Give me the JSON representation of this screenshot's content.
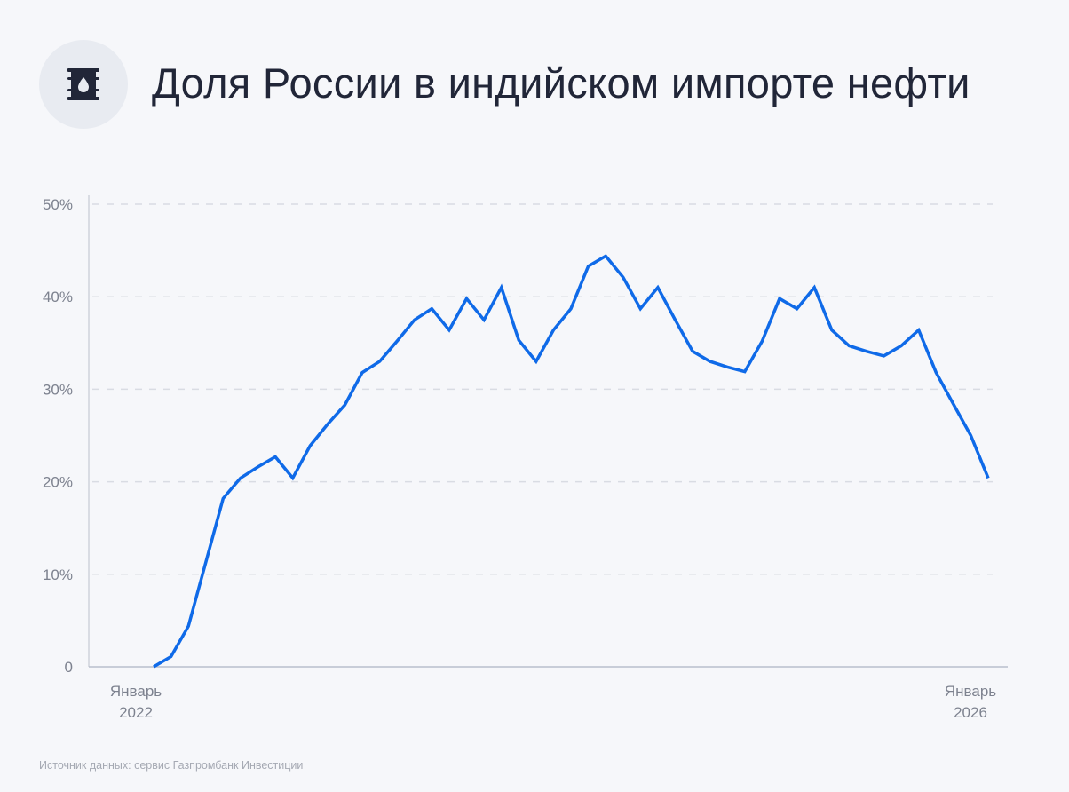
{
  "header": {
    "icon": "oil-barrel-icon",
    "title": "Доля России в индийском импорте нефти"
  },
  "colors": {
    "line": "#0f6ae8",
    "background": "#f6f7fa",
    "grid": "#d9dce3",
    "axis": "#b9bfcc",
    "title": "#212638",
    "tick_label": "#7d828f",
    "icon_bg": "#e8ebf1"
  },
  "chart_data": {
    "type": "line",
    "title": "Доля России в индийском импорте нефти",
    "xlabel": "",
    "ylabel": "",
    "ylim": [
      0,
      50
    ],
    "y_ticks": [
      "0",
      "10%",
      "20%",
      "30%",
      "40%",
      "50%"
    ],
    "x_tick_labels": [
      {
        "line1": "Январь",
        "line2": "2022",
        "index": 0
      },
      {
        "line1": "Январь",
        "line2": "2026",
        "index": 48
      }
    ],
    "grid": "horizontal dashed",
    "legend": "none",
    "x": [
      "2022-01",
      "2022-02",
      "2022-03",
      "2022-04",
      "2022-05",
      "2022-06",
      "2022-07",
      "2022-08",
      "2022-09",
      "2022-10",
      "2022-11",
      "2022-12",
      "2023-01",
      "2023-02",
      "2023-03",
      "2023-04",
      "2023-05",
      "2023-06",
      "2023-07",
      "2023-08",
      "2023-09",
      "2023-10",
      "2023-11",
      "2023-12",
      "2024-01",
      "2024-02",
      "2024-03",
      "2024-04",
      "2024-05",
      "2024-06",
      "2024-07",
      "2024-08",
      "2024-09",
      "2024-10",
      "2024-11",
      "2024-12",
      "2025-01",
      "2025-02",
      "2025-03",
      "2025-04",
      "2025-05",
      "2025-06",
      "2025-07",
      "2025-08",
      "2025-09",
      "2025-10",
      "2025-11",
      "2025-12",
      "2026-01"
    ],
    "series": [
      {
        "name": "Доля России, %",
        "values": [
          0,
          1.1,
          4.4,
          11.3,
          18.2,
          20.4,
          21.6,
          22.7,
          20.4,
          23.9,
          26.2,
          28.3,
          31.8,
          33.0,
          35.2,
          37.5,
          38.7,
          36.4,
          39.8,
          37.5,
          41.0,
          35.3,
          33.0,
          36.4,
          38.7,
          43.3,
          44.4,
          42.1,
          38.7,
          41.0,
          37.5,
          34.1,
          33.0,
          32.4,
          31.9,
          35.2,
          39.8,
          38.7,
          41.0,
          36.4,
          34.7,
          34.1,
          33.6,
          34.7,
          36.4,
          31.8,
          28.4,
          25.0,
          20.4
        ]
      }
    ]
  },
  "footer": {
    "source": "Источник данных: сервис Газпромбанк Инвестиции"
  }
}
